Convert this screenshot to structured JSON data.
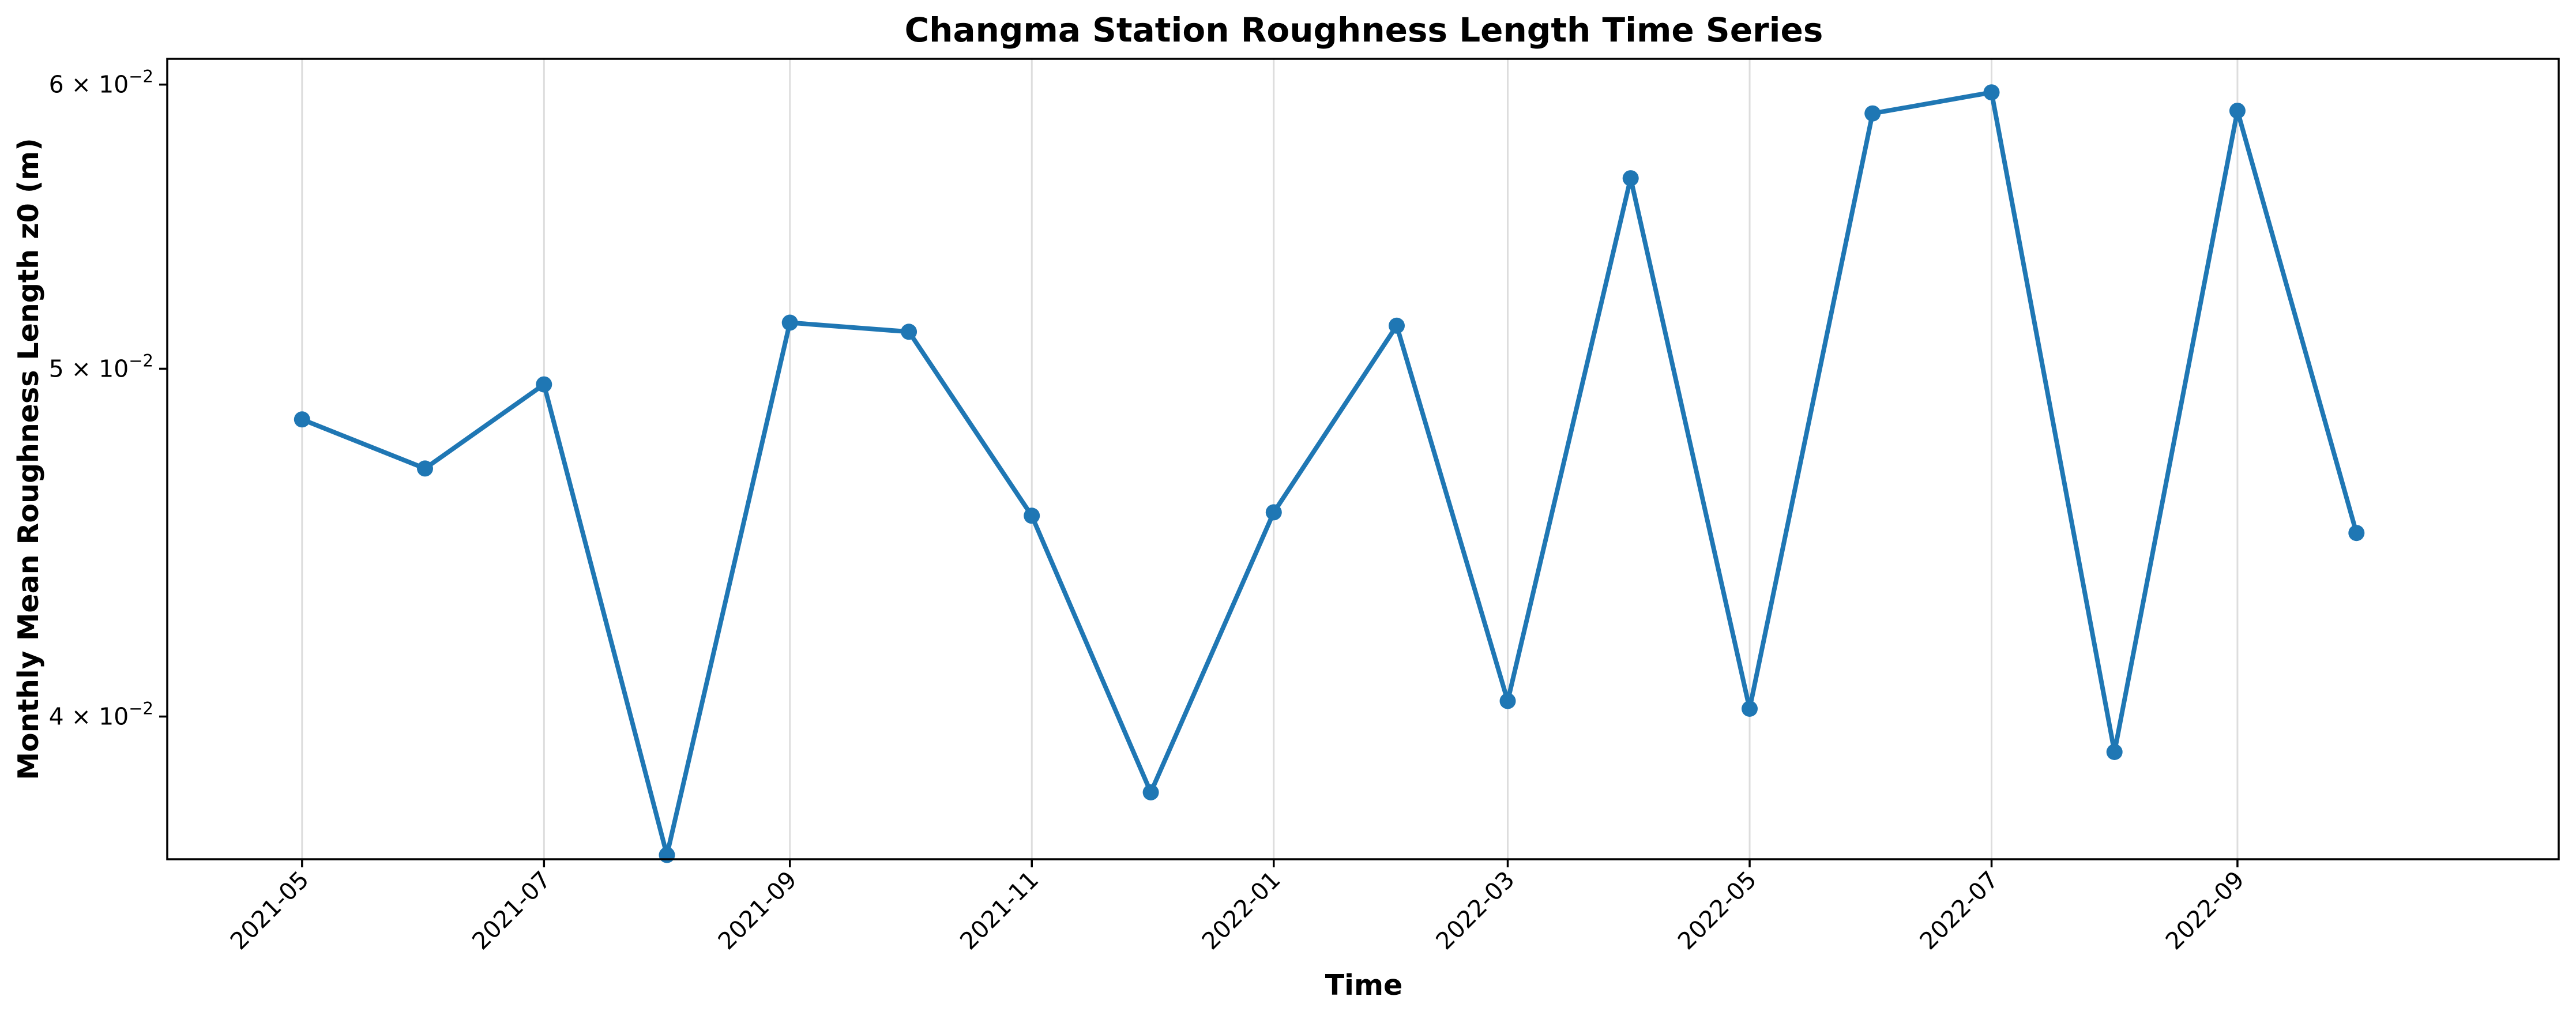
{
  "chart_data": {
    "type": "line",
    "title": "Changma Station Roughness Length Time Series",
    "xlabel": "Time",
    "ylabel": "Monthly Mean Roughness Length z0 (m)",
    "yscale": "log",
    "ylim": [
      0.0365,
      0.061
    ],
    "xlim": [
      "2021-03-28",
      "2022-11-21"
    ],
    "grid": "vertical",
    "color": "#1f77b4",
    "x_tick_labels": [
      "2021-05",
      "2021-07",
      "2021-09",
      "2021-11",
      "2022-01",
      "2022-03",
      "2022-05",
      "2022-07",
      "2022-09"
    ],
    "y_ticks": [
      {
        "value": 0.04,
        "mantissa": "4",
        "base": "10",
        "exponent": "−2"
      },
      {
        "value": 0.05,
        "mantissa": "5",
        "base": "10",
        "exponent": "−2"
      },
      {
        "value": 0.06,
        "mantissa": "6",
        "base": "10",
        "exponent": "−2"
      }
    ],
    "x": [
      "2021-05-01",
      "2021-06-01",
      "2021-07-01",
      "2021-08-01",
      "2021-09-01",
      "2021-10-01",
      "2021-11-01",
      "2021-12-01",
      "2022-01-01",
      "2022-02-01",
      "2022-03-01",
      "2022-04-01",
      "2022-05-01",
      "2022-06-01",
      "2022-07-01",
      "2022-08-01",
      "2022-09-01",
      "2022-10-01"
    ],
    "values": [
      0.0484,
      0.0469,
      0.0495,
      0.0366,
      0.0515,
      0.0512,
      0.0455,
      0.0381,
      0.0456,
      0.0514,
      0.0404,
      0.0565,
      0.0402,
      0.0589,
      0.0597,
      0.0391,
      0.059,
      0.045
    ]
  }
}
